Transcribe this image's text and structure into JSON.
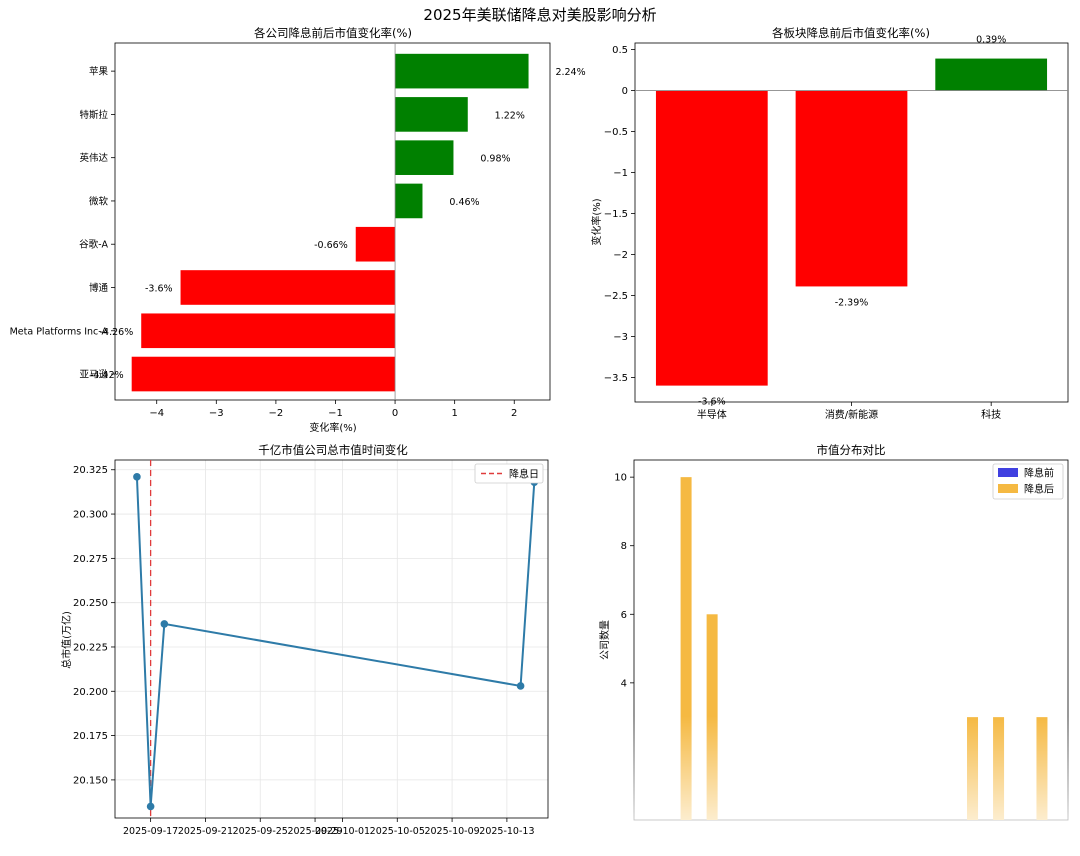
{
  "figure": {
    "suptitle": "2025年美联储降息对美股影响分析"
  },
  "chart_data": [
    {
      "id": "company_change",
      "type": "bar",
      "orientation": "horizontal",
      "title": "各公司降息前后市值变化率(%)",
      "xlabel": "变化率(%)",
      "ylabel": "",
      "categories": [
        "苹果",
        "特斯拉",
        "英伟达",
        "微软",
        "谷歌-A",
        "博通",
        "Meta Platforms Inc-A",
        "亚马逊"
      ],
      "values": [
        2.24,
        1.22,
        0.98,
        0.46,
        -0.66,
        -3.6,
        -4.26,
        -4.42
      ],
      "labels": [
        "2.24%",
        "1.22%",
        "0.98%",
        "0.46%",
        "-0.66%",
        "-3.6%",
        "-4.26%",
        "-4.42%"
      ],
      "xlim": [
        -4.7,
        2.6
      ],
      "xticks": [
        -4,
        -3,
        -2,
        -1,
        0,
        1,
        2
      ],
      "positive_color": "#008000",
      "negative_color": "#ff0000",
      "zero_line": true,
      "grid": false
    },
    {
      "id": "sector_change",
      "type": "bar",
      "title": "各板块降息前后市值变化率(%)",
      "xlabel": "",
      "ylabel": "变化率(%)",
      "categories": [
        "半导体",
        "消费/新能源",
        "科技"
      ],
      "values": [
        -3.6,
        -2.39,
        0.39
      ],
      "labels": [
        "-3.6%",
        "-2.39%",
        "0.39%"
      ],
      "ylim": [
        -3.8,
        0.58
      ],
      "yticks": [
        0.5,
        0.0,
        -0.5,
        -1.0,
        -1.5,
        -2.0,
        -2.5,
        -3.0,
        -3.5
      ],
      "positive_color": "#008000",
      "negative_color": "#ff0000",
      "zero_line": true,
      "grid": false
    },
    {
      "id": "total_mcap_time",
      "type": "line",
      "title": "千亿市值公司总市值时间变化",
      "xlabel": "",
      "ylabel": "总市值(万亿)",
      "x": [
        "2025-09-16",
        "2025-09-17",
        "2025-09-18",
        "2025-10-14",
        "2025-10-15"
      ],
      "y": [
        20.321,
        20.135,
        20.238,
        20.203,
        20.318
      ],
      "xlim": [
        "2025-09-14.4",
        "2025-10-16"
      ],
      "ylim": [
        20.1285,
        20.3305
      ],
      "xticks": [
        "2025-09-17",
        "2025-09-21",
        "2025-09-25",
        "2025-09-29",
        "2025-10-01",
        "2025-10-05",
        "2025-10-09",
        "2025-10-13"
      ],
      "yticks": [
        20.15,
        20.175,
        20.2,
        20.225,
        20.25,
        20.275,
        20.3,
        20.325
      ],
      "line_color": "#2e7ba8",
      "marker_color": "#2e7ba8",
      "event_line": {
        "x": "2025-09-17",
        "label": "降息日",
        "color": "#e03c3c"
      },
      "legend": "top-right",
      "grid": true
    },
    {
      "id": "mcap_distribution",
      "type": "bar",
      "title": "市值分布对比",
      "xlabel": "",
      "ylabel": "公司数量",
      "series": [
        {
          "name": "降息前",
          "color": "#4040e0",
          "values": [
            0,
            0,
            0,
            0,
            0,
            0
          ]
        },
        {
          "name": "降息后",
          "color": "#f5b942",
          "values": [
            10,
            6,
            3,
            3,
            3,
            0
          ]
        }
      ],
      "bins": [
        0.12,
        0.18,
        0.78,
        0.84,
        0.94,
        1.0
      ],
      "ylim": [
        0,
        10.5
      ],
      "yticks": [
        4,
        6,
        8,
        10
      ],
      "legend": "top-right",
      "grid": false
    }
  ]
}
